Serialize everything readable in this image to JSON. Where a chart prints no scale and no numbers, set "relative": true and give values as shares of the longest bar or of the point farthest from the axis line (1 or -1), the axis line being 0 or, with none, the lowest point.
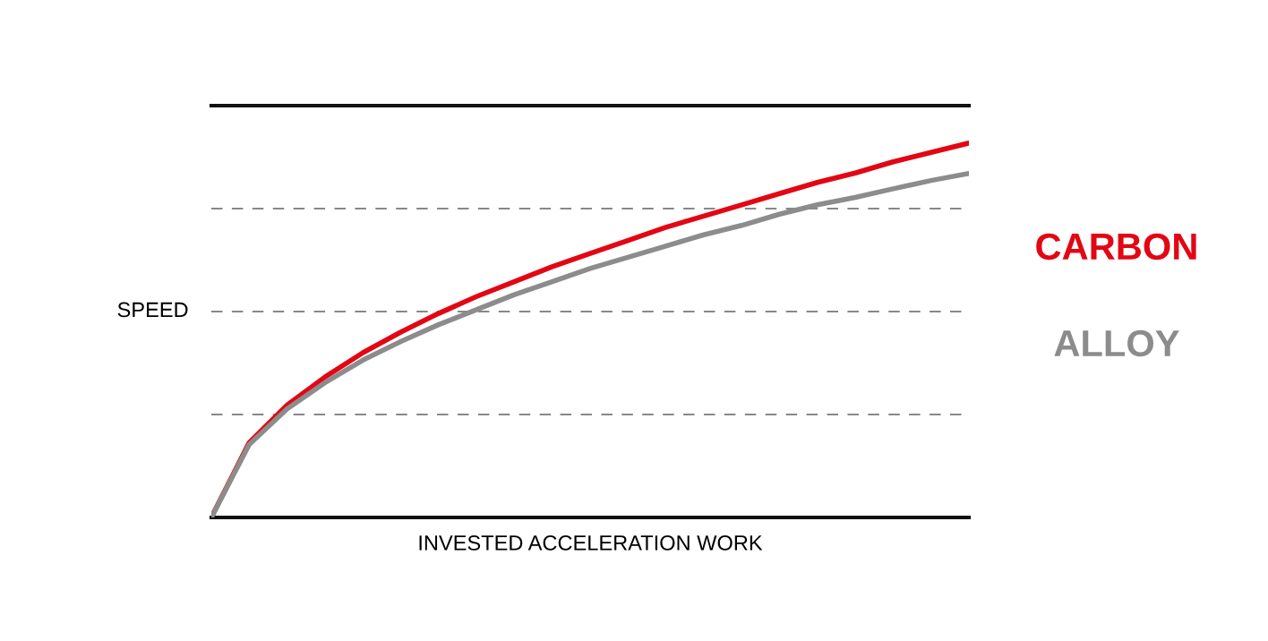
{
  "chart_data": {
    "type": "line",
    "relative": true,
    "xlabel": "INVESTED ACCELERATION WORK",
    "ylabel": "SPEED",
    "categories": [
      null,
      null,
      null,
      null,
      null,
      null,
      null,
      null,
      null,
      null,
      null,
      null,
      null,
      null,
      null,
      null,
      null,
      null,
      null,
      null,
      null
    ],
    "series": [
      {
        "name": "CARBON",
        "color": "#e30613",
        "values": [
          0,
          0.2,
          0.3,
          0.375,
          0.44,
          0.495,
          0.545,
          0.59,
          0.63,
          0.67,
          0.705,
          0.74,
          0.775,
          0.805,
          0.835,
          0.865,
          0.895,
          0.92,
          0.95,
          0.975,
          1.0
        ]
      },
      {
        "name": "ALLOY",
        "color": "#8c8c8c",
        "values": [
          0,
          0.195,
          0.29,
          0.36,
          0.42,
          0.47,
          0.515,
          0.555,
          0.595,
          0.63,
          0.665,
          0.695,
          0.725,
          0.755,
          0.78,
          0.81,
          0.835,
          0.855,
          0.878,
          0.9,
          0.919
        ]
      }
    ],
    "grid": "y",
    "legend": "right",
    "line_style": "solid",
    "marker": "none"
  }
}
